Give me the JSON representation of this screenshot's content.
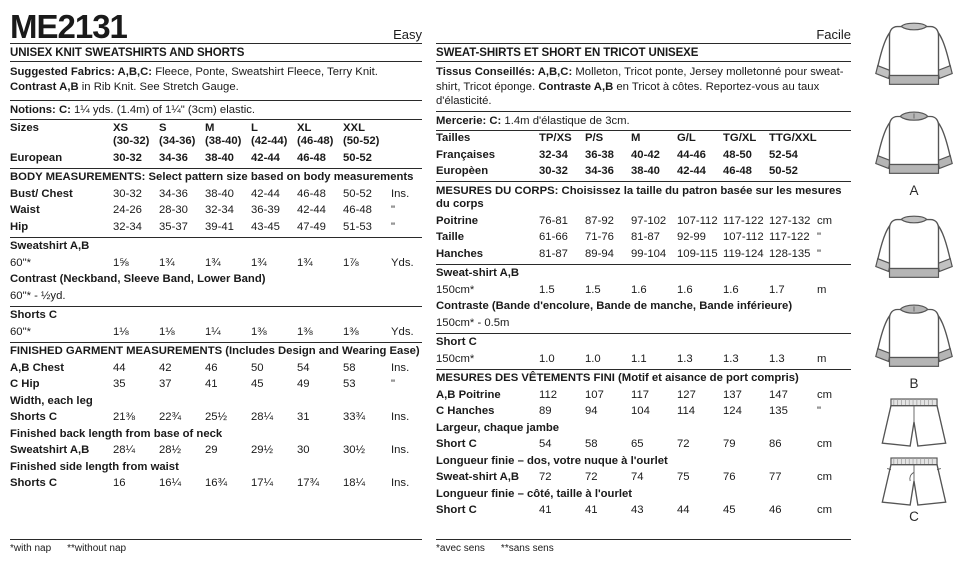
{
  "colors": {
    "text": "#1a1a1a",
    "rib_gray": "#b5b5b5",
    "line_art": "#555555"
  },
  "header": {
    "pattern_number": "ME2131"
  },
  "english": {
    "difficulty": "Easy",
    "title": "UNISEX KNIT SWEATSHIRTS AND SHORTS",
    "fabrics_label": "Suggested Fabrics: A,B,C:",
    "fabrics_text": " Fleece, Ponte, Sweatshirt Fleece, Terry Knit. ",
    "contrast_label": "Contrast A,B",
    "contrast_text": " in Rib Knit. See Stretch Gauge.",
    "notions_label": "Notions: C:",
    "notions_text": " 1¼ yds. (1.4m) of 1¼\" (3cm) elastic.",
    "rows": [
      {
        "kind": "cells",
        "label": "Sizes",
        "bold_values": true,
        "values": [
          "XS\n(30-32)",
          "S\n(34-36)",
          "M\n(38-40)",
          "L\n(42-44)",
          "XL\n(46-48)",
          "XXL\n(50-52)"
        ],
        "unit": ""
      },
      {
        "kind": "cells",
        "label": "European",
        "bold_values": true,
        "values": [
          "30-32",
          "34-36",
          "38-40",
          "42-44",
          "46-48",
          "50-52"
        ],
        "unit": ""
      },
      {
        "kind": "rule"
      },
      {
        "kind": "heading",
        "text": "BODY MEASUREMENTS: Select pattern size based on body measurements"
      },
      {
        "kind": "cells",
        "label": "Bust/ Chest",
        "values": [
          "30-32",
          "34-36",
          "38-40",
          "42-44",
          "46-48",
          "50-52"
        ],
        "unit": "Ins."
      },
      {
        "kind": "cells",
        "label": "Waist",
        "values": [
          "24-26",
          "28-30",
          "32-34",
          "36-39",
          "42-44",
          "46-48"
        ],
        "unit": "\""
      },
      {
        "kind": "cells",
        "label": "Hip",
        "values": [
          "32-34",
          "35-37",
          "39-41",
          "43-45",
          "47-49",
          "51-53"
        ],
        "unit": "\""
      },
      {
        "kind": "rule"
      },
      {
        "kind": "heading",
        "text": "Sweatshirt A,B"
      },
      {
        "kind": "cells",
        "label": "60\"*",
        "plain_label": true,
        "values": [
          "1⅝",
          "1¾",
          "1¾",
          "1¾",
          "1¾",
          "1⅞"
        ],
        "unit": "Yds."
      },
      {
        "kind": "heading",
        "text": "Contrast (Neckband, Sleeve Band, Lower Band)"
      },
      {
        "kind": "plain",
        "text": "60\"* - ½yd."
      },
      {
        "kind": "rule"
      },
      {
        "kind": "heading",
        "text": "Shorts C"
      },
      {
        "kind": "cells",
        "label": "60\"*",
        "plain_label": true,
        "values": [
          "1⅛",
          "1⅛",
          "1¼",
          "1⅜",
          "1⅜",
          "1⅜"
        ],
        "unit": "Yds."
      },
      {
        "kind": "rule"
      },
      {
        "kind": "heading",
        "text": "FINISHED GARMENT MEASUREMENTS (Includes Design and Wearing Ease)"
      },
      {
        "kind": "cells",
        "label": "A,B Chest",
        "values": [
          "44",
          "42",
          "46",
          "50",
          "54",
          "58"
        ],
        "unit": "Ins."
      },
      {
        "kind": "cells",
        "label": "C Hip",
        "values": [
          "35",
          "37",
          "41",
          "45",
          "49",
          "53"
        ],
        "unit": "\""
      },
      {
        "kind": "heading",
        "text": "Width, each leg"
      },
      {
        "kind": "cells",
        "label": "Shorts C",
        "values": [
          "21⅜",
          "22¾",
          "25½",
          "28¼",
          "31",
          "33¾"
        ],
        "unit": "Ins."
      },
      {
        "kind": "heading",
        "text": "Finished back length from base of neck"
      },
      {
        "kind": "cells",
        "label": "Sweatshirt A,B",
        "values": [
          "28¼",
          "28½",
          "29",
          "29½",
          "30",
          "30½"
        ],
        "unit": "Ins."
      },
      {
        "kind": "heading",
        "text": "Finished side length from waist"
      },
      {
        "kind": "cells",
        "label": "Shorts C",
        "values": [
          "16",
          "16¼",
          "16¾",
          "17¼",
          "17¾",
          "18¼"
        ],
        "unit": "Ins."
      }
    ],
    "footnote_1": "*with nap",
    "footnote_2": "**without nap"
  },
  "french": {
    "difficulty": "Facile",
    "title": "SWEAT-SHIRTS ET SHORT EN TRICOT UNISEXE",
    "fabrics_label": "Tissus Conseillés: A,B,C:",
    "fabrics_text": " Molleton, Tricot ponte, Jersey molletonné pour sweat-shirt, Tricot éponge. ",
    "contrast_label": "Contraste A,B",
    "contrast_text": " en Tricot à côtes. Reportez-vous au taux d'élasticité.",
    "notions_label": "Mercerie: C:",
    "notions_text": " 1.4m d'élastique de 3cm.",
    "rows": [
      {
        "kind": "cells",
        "label": "Tailles",
        "bold_values": true,
        "values": [
          "TP/XS",
          "P/S",
          "M",
          "G/L",
          "TG/XL",
          "TTG/XXL"
        ],
        "unit": ""
      },
      {
        "kind": "cells",
        "label": "Françaises",
        "bold_values": true,
        "values": [
          "32-34",
          "36-38",
          "40-42",
          "44-46",
          "48-50",
          "52-54"
        ],
        "unit": ""
      },
      {
        "kind": "cells",
        "label": "Europèen",
        "bold_values": true,
        "values": [
          "30-32",
          "34-36",
          "38-40",
          "42-44",
          "46-48",
          "50-52"
        ],
        "unit": ""
      },
      {
        "kind": "rule"
      },
      {
        "kind": "heading",
        "text": "MESURES DU CORPS: Choisissez la taille du patron basée sur les mesures du corps"
      },
      {
        "kind": "cells",
        "label": "Poitrine",
        "values": [
          "76-81",
          "87-92",
          "97-102",
          "107-112",
          "117-122",
          "127-132"
        ],
        "unit": "cm"
      },
      {
        "kind": "cells",
        "label": "Taille",
        "values": [
          "61-66",
          "71-76",
          "81-87",
          "92-99",
          "107-112",
          "117-122"
        ],
        "unit": "\""
      },
      {
        "kind": "cells",
        "label": "Hanches",
        "values": [
          "81-87",
          "89-94",
          "99-104",
          "109-115",
          "119-124",
          "128-135"
        ],
        "unit": "\""
      },
      {
        "kind": "rule"
      },
      {
        "kind": "heading",
        "text": "Sweat-shirt A,B"
      },
      {
        "kind": "cells",
        "label": "150cm*",
        "plain_label": true,
        "values": [
          "1.5",
          "1.5",
          "1.6",
          "1.6",
          "1.6",
          "1.7"
        ],
        "unit": "m"
      },
      {
        "kind": "heading",
        "text": "Contraste (Bande d'encolure, Bande de manche, Bande inférieure)"
      },
      {
        "kind": "plain",
        "text": "150cm* - 0.5m"
      },
      {
        "kind": "rule"
      },
      {
        "kind": "heading",
        "text": "Short C"
      },
      {
        "kind": "cells",
        "label": "150cm*",
        "plain_label": true,
        "values": [
          "1.0",
          "1.0",
          "1.1",
          "1.3",
          "1.3",
          "1.3"
        ],
        "unit": "m"
      },
      {
        "kind": "rule"
      },
      {
        "kind": "heading",
        "text": "MESURES DES VÊTEMENTS FINI (Motif et aisance de port compris)"
      },
      {
        "kind": "cells",
        "label": "A,B Poitrine",
        "values": [
          "112",
          "107",
          "117",
          "127",
          "137",
          "147"
        ],
        "unit": "cm"
      },
      {
        "kind": "cells",
        "label": "C Hanches",
        "values": [
          "89",
          "94",
          "104",
          "114",
          "124",
          "135"
        ],
        "unit": "\""
      },
      {
        "kind": "heading",
        "text": "Largeur, chaque jambe"
      },
      {
        "kind": "cells",
        "label": "Short C",
        "values": [
          "54",
          "58",
          "65",
          "72",
          "79",
          "86"
        ],
        "unit": "cm"
      },
      {
        "kind": "heading",
        "text": "Longueur finie – dos, votre nuque à l'ourlet"
      },
      {
        "kind": "cells",
        "label": "Sweat-shirt A,B",
        "values": [
          "72",
          "72",
          "74",
          "75",
          "76",
          "77"
        ],
        "unit": "cm"
      },
      {
        "kind": "heading",
        "text": "Longueur finie – côté, taille à l'ourlet"
      },
      {
        "kind": "cells",
        "label": "Short C",
        "values": [
          "41",
          "41",
          "43",
          "44",
          "45",
          "46"
        ],
        "unit": "cm"
      }
    ],
    "footnote_1": "*avec sens",
    "footnote_2": "**sans sens"
  },
  "figures": {
    "labels": [
      "A",
      "B",
      "C"
    ]
  }
}
